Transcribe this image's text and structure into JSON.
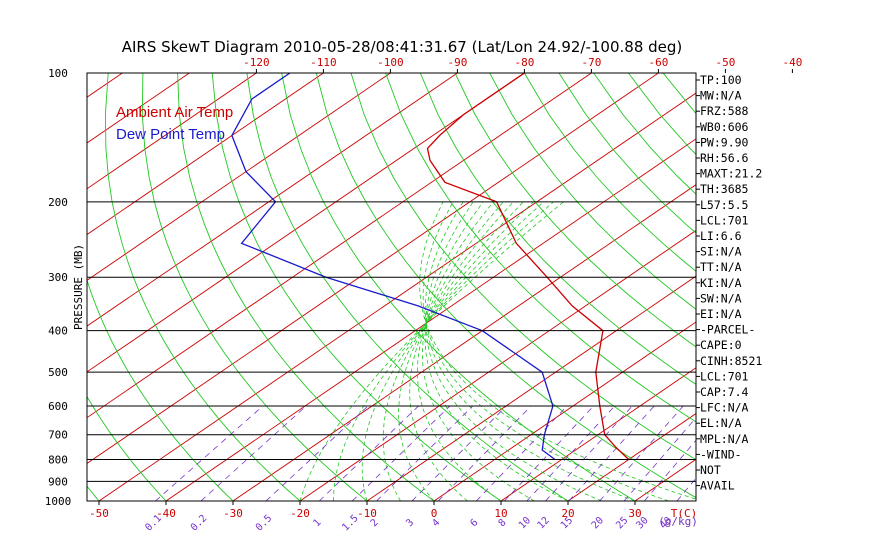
{
  "chart_data": {
    "type": "line",
    "title": "AIRS SkewT Diagram 2010-05-28/08:41:31.67 (Lat/Lon 24.92/-100.88 deg)",
    "ylabel": "PRESSURE (MB)",
    "xlabel_top": "T(C)",
    "xlabel_mixing": "(g/kg)",
    "log_y": true,
    "ylim": [
      1000,
      100
    ],
    "xlim_bottom": [
      -50,
      40
    ],
    "pressure_ticks": [
      "100",
      "200",
      "300",
      "400",
      "500",
      "600",
      "700",
      "800",
      "900",
      "1000"
    ],
    "top_temperature_ticks": [
      "-120",
      "-110",
      "-100",
      "-90",
      "-80",
      "-70",
      "-60",
      "-50",
      "-40"
    ],
    "bottom_temperature_ticks": [
      "-50",
      "-40",
      "-30",
      "-20",
      "-10",
      "0",
      "10",
      "20",
      "30"
    ],
    "bottom_t_label": "T(C)",
    "mixing_ratio_ticks": [
      "0.1",
      "0.2",
      "0.5",
      "1",
      "1.5",
      "2",
      "3",
      "4",
      "6",
      "8",
      "10",
      "12",
      "15",
      "20",
      "25",
      "30",
      "40"
    ],
    "mixing_ratio_unit": "(g/kg)",
    "legend": [
      "Ambient Air Temp",
      "Dew Point Temp"
    ],
    "legend_colors": [
      "#cc0000",
      "#1a1acc"
    ],
    "series": [
      {
        "name": "Ambient Air Temp",
        "color": "#cc0000",
        "x": [
          20,
          15.5,
          11,
          4,
          -4,
          -12,
          -22,
          -32,
          -44,
          -56,
          -68,
          -75,
          -78,
          -79,
          -80,
          -80,
          -80
        ],
        "y": [
          800,
          750,
          700,
          600,
          500,
          400,
          350,
          300,
          250,
          200,
          180,
          160,
          150,
          140,
          125,
          110,
          100
        ]
      },
      {
        "name": "Dew Point Temp",
        "color": "#1a1acc",
        "x": [
          9,
          5,
          2,
          -3,
          -12,
          -30,
          -45,
          -65,
          -85,
          -89,
          -100,
          -110,
          -115,
          -115
        ],
        "y": [
          800,
          760,
          700,
          600,
          500,
          400,
          350,
          300,
          250,
          200,
          170,
          140,
          115,
          100
        ]
      }
    ],
    "grid": true
  },
  "side_panel": [
    "TP:100",
    "MW:N/A",
    "FRZ:588",
    "WB0:606",
    "PW:9.90",
    "RH:56.6",
    "MAXT:21.2",
    "TH:3685",
    "L57:5.5",
    "LCL:701",
    "LI:6.6",
    "SI:N/A",
    "TT:N/A",
    "KI:N/A",
    "SW:N/A",
    "EI:N/A",
    "-PARCEL-",
    "CAPE:0",
    "CINH:8521",
    "LCL:701",
    "CAP:7.4",
    "LFC:N/A",
    "EL:N/A",
    "MPL:N/A",
    "-WIND-",
    "NOT",
    "AVAIL"
  ]
}
